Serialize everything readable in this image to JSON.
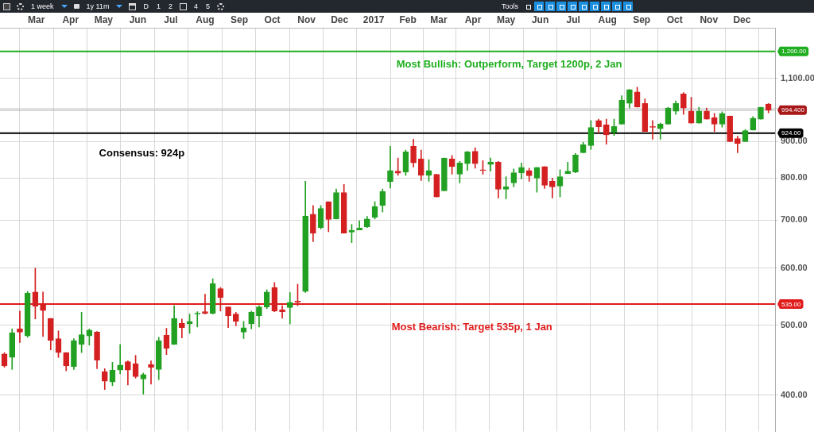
{
  "chart_data": {
    "type": "candlestick",
    "x": [
      "2016-02-01",
      "2016-02-08",
      "2016-02-15",
      "2016-02-22",
      "2016-02-29",
      "2016-03-07",
      "2016-03-14",
      "2016-03-21",
      "2016-03-28",
      "2016-04-04",
      "2016-04-11",
      "2016-04-18",
      "2016-04-25",
      "2016-05-02",
      "2016-05-09",
      "2016-05-16",
      "2016-05-23",
      "2016-05-30",
      "2016-06-06",
      "2016-06-13",
      "2016-06-20",
      "2016-06-27",
      "2016-07-04",
      "2016-07-11",
      "2016-07-18",
      "2016-07-25",
      "2016-08-01",
      "2016-08-08",
      "2016-08-15",
      "2016-08-22",
      "2016-08-29",
      "2016-09-05",
      "2016-09-12",
      "2016-09-19",
      "2016-09-26",
      "2016-10-03",
      "2016-10-10",
      "2016-10-17",
      "2016-10-24",
      "2016-10-31",
      "2016-11-07",
      "2016-11-14",
      "2016-11-21",
      "2016-11-28",
      "2016-12-05",
      "2016-12-12",
      "2016-12-19",
      "2016-12-26",
      "2017-01-02",
      "2017-01-09",
      "2017-01-16",
      "2017-01-23",
      "2017-01-30",
      "2017-02-06",
      "2017-02-13",
      "2017-02-20",
      "2017-02-27",
      "2017-03-06",
      "2017-03-13",
      "2017-03-20",
      "2017-03-27",
      "2017-04-03",
      "2017-04-10",
      "2017-04-17",
      "2017-04-24",
      "2017-05-01",
      "2017-05-08",
      "2017-05-15",
      "2017-05-22",
      "2017-05-29",
      "2017-06-05",
      "2017-06-12",
      "2017-06-19",
      "2017-06-26",
      "2017-07-03",
      "2017-07-10",
      "2017-07-17",
      "2017-07-24",
      "2017-07-31",
      "2017-08-07",
      "2017-08-14",
      "2017-08-21",
      "2017-08-28",
      "2017-09-04",
      "2017-09-11",
      "2017-09-18",
      "2017-09-25",
      "2017-10-02",
      "2017-10-09",
      "2017-10-16",
      "2017-10-23",
      "2017-10-30",
      "2017-11-06",
      "2017-11-13",
      "2017-11-20",
      "2017-11-27",
      "2017-12-04",
      "2017-12-11",
      "2017-12-18",
      "2017-12-25"
    ],
    "ohlc": [
      [
        456,
        458,
        437,
        439
      ],
      [
        451,
        494,
        434,
        488
      ],
      [
        494,
        523,
        473,
        489
      ],
      [
        483,
        557,
        481,
        554
      ],
      [
        556,
        600,
        510,
        531
      ],
      [
        534,
        556,
        482,
        524
      ],
      [
        511,
        511,
        462,
        476
      ],
      [
        479,
        491,
        451,
        458
      ],
      [
        458,
        458,
        432,
        439
      ],
      [
        438,
        479,
        434,
        476
      ],
      [
        470,
        521,
        458,
        485
      ],
      [
        483,
        494,
        469,
        492
      ],
      [
        489,
        490,
        435,
        447
      ],
      [
        431,
        435,
        407,
        418
      ],
      [
        417,
        444,
        412,
        433
      ],
      [
        433,
        470,
        428,
        440
      ],
      [
        445,
        446,
        413,
        433
      ],
      [
        442,
        454,
        422,
        424
      ],
      [
        421,
        429,
        401,
        427
      ],
      [
        441,
        446,
        414,
        437
      ],
      [
        434,
        481,
        420,
        476
      ],
      [
        484,
        495,
        455,
        464
      ],
      [
        470,
        532,
        470,
        511
      ],
      [
        503,
        510,
        480,
        496
      ],
      [
        502,
        518,
        487,
        506
      ],
      [
        518,
        522,
        497,
        519
      ],
      [
        522,
        552,
        518,
        519
      ],
      [
        519,
        580,
        518,
        571
      ],
      [
        562,
        564,
        523,
        546
      ],
      [
        530,
        530,
        496,
        515
      ],
      [
        518,
        521,
        499,
        506
      ],
      [
        489,
        506,
        479,
        496
      ],
      [
        502,
        523,
        494,
        521
      ],
      [
        515,
        532,
        497,
        530
      ],
      [
        530,
        560,
        527,
        556
      ],
      [
        564,
        573,
        522,
        523
      ],
      [
        525,
        532,
        511,
        522
      ],
      [
        529,
        555,
        502,
        538
      ],
      [
        540,
        570,
        532,
        538
      ],
      [
        557,
        792,
        555,
        709
      ],
      [
        713,
        733,
        653,
        671
      ],
      [
        683,
        733,
        680,
        726
      ],
      [
        742,
        742,
        674,
        701
      ],
      [
        702,
        773,
        702,
        764
      ],
      [
        764,
        784,
        671,
        671
      ],
      [
        673,
        690,
        651,
        677
      ],
      [
        678,
        698,
        678,
        682
      ],
      [
        685,
        708,
        683,
        702
      ],
      [
        706,
        742,
        702,
        731
      ],
      [
        733,
        773,
        718,
        767
      ],
      [
        791,
        886,
        775,
        820
      ],
      [
        818,
        853,
        807,
        813
      ],
      [
        816,
        875,
        807,
        870
      ],
      [
        886,
        906,
        829,
        840
      ],
      [
        851,
        875,
        794,
        807
      ],
      [
        807,
        849,
        792,
        820
      ],
      [
        810,
        810,
        753,
        753
      ],
      [
        768,
        853,
        768,
        853
      ],
      [
        851,
        860,
        810,
        830
      ],
      [
        810,
        844,
        788,
        840
      ],
      [
        838,
        872,
        820,
        870
      ],
      [
        872,
        882,
        826,
        838
      ],
      [
        822,
        846,
        810,
        820
      ],
      [
        836,
        853,
        818,
        842
      ],
      [
        842,
        844,
        751,
        772
      ],
      [
        772,
        804,
        749,
        778
      ],
      [
        788,
        824,
        778,
        814
      ],
      [
        814,
        840,
        798,
        828
      ],
      [
        820,
        826,
        792,
        806
      ],
      [
        800,
        828,
        765,
        828
      ],
      [
        830,
        830,
        774,
        782
      ],
      [
        792,
        800,
        751,
        778
      ],
      [
        780,
        822,
        753,
        804
      ],
      [
        812,
        842,
        812,
        818
      ],
      [
        816,
        866,
        814,
        862
      ],
      [
        868,
        897,
        868,
        890
      ],
      [
        888,
        962,
        877,
        941
      ],
      [
        962,
        966,
        924,
        943
      ],
      [
        949,
        966,
        892,
        919
      ],
      [
        926,
        966,
        917,
        944
      ],
      [
        951,
        1041,
        951,
        1026
      ],
      [
        1016,
        1062,
        1001,
        1062
      ],
      [
        1054,
        1070,
        1004,
        1004
      ],
      [
        1016,
        1031,
        929,
        929
      ],
      [
        944,
        962,
        906,
        941
      ],
      [
        937,
        954,
        906,
        951
      ],
      [
        951,
        1004,
        951,
        1001
      ],
      [
        991,
        1024,
        981,
        1016
      ],
      [
        1047,
        1052,
        981,
        1001
      ],
      [
        991,
        1036,
        954,
        954
      ],
      [
        954,
        1004,
        954,
        991
      ],
      [
        991,
        1001,
        966,
        966
      ],
      [
        971,
        984,
        929,
        951
      ],
      [
        951,
        989,
        942,
        984
      ],
      [
        976,
        976,
        899,
        899
      ],
      [
        908,
        915,
        868,
        894
      ],
      [
        899,
        935,
        899,
        931
      ],
      [
        933,
        974,
        933,
        969
      ],
      [
        966,
        1004,
        966,
        1004
      ],
      [
        1014,
        1016,
        986,
        994.4
      ]
    ],
    "colors": [
      "#d42020",
      "#22a022",
      "#d42020",
      "#22a022",
      "#d42020",
      "#d42020",
      "#d42020",
      "#d42020",
      "#d42020",
      "#22a022",
      "#22a022",
      "#22a022",
      "#d42020",
      "#d42020",
      "#22a022",
      "#22a022",
      "#d42020",
      "#d42020",
      "#22a022",
      "#d42020",
      "#22a022",
      "#d42020",
      "#22a022",
      "#d42020",
      "#22a022",
      "#22a022",
      "#d42020",
      "#22a022",
      "#d42020",
      "#d42020",
      "#d42020",
      "#22a022",
      "#22a022",
      "#22a022",
      "#22a022",
      "#d42020",
      "#d42020",
      "#22a022",
      "#d42020",
      "#22a022",
      "#d42020",
      "#22a022",
      "#d42020",
      "#22a022",
      "#d42020",
      "#22a022",
      "#22a022",
      "#22a022",
      "#22a022",
      "#22a022",
      "#22a022",
      "#d42020",
      "#22a022",
      "#d42020",
      "#d42020",
      "#22a022",
      "#d42020",
      "#22a022",
      "#d42020",
      "#22a022",
      "#22a022",
      "#d42020",
      "#d42020",
      "#22a022",
      "#d42020",
      "#22a022",
      "#22a022",
      "#22a022",
      "#d42020",
      "#22a022",
      "#d42020",
      "#d42020",
      "#22a022",
      "#22a022",
      "#22a022",
      "#22a022",
      "#22a022",
      "#d42020",
      "#d42020",
      "#22a022",
      "#22a022",
      "#22a022",
      "#d42020",
      "#d42020",
      "#d42020",
      "#22a022",
      "#22a022",
      "#22a022",
      "#d42020",
      "#d42020",
      "#22a022",
      "#d42020",
      "#d42020",
      "#22a022",
      "#d42020",
      "#d42020",
      "#22a022",
      "#22a022",
      "#22a022",
      "#d42020"
    ],
    "xlim": [
      "2016-01-28",
      "2017-12-31"
    ],
    "xticks": [
      {
        "value": "2016-03-01",
        "label": "Mar"
      },
      {
        "value": "2016-04-01",
        "label": "Apr"
      },
      {
        "value": "2016-05-01",
        "label": "May"
      },
      {
        "value": "2016-06-01",
        "label": "Jun"
      },
      {
        "value": "2016-07-01",
        "label": "Jul"
      },
      {
        "value": "2016-08-01",
        "label": "Aug"
      },
      {
        "value": "2016-09-01",
        "label": "Sep"
      },
      {
        "value": "2016-10-01",
        "label": "Oct"
      },
      {
        "value": "2016-11-01",
        "label": "Nov"
      },
      {
        "value": "2016-12-01",
        "label": "Dec"
      },
      {
        "value": "2017-01-01",
        "label": "2017"
      },
      {
        "value": "2017-02-01",
        "label": "Feb"
      },
      {
        "value": "2017-03-01",
        "label": "Mar"
      },
      {
        "value": "2017-04-01",
        "label": "Apr"
      },
      {
        "value": "2017-05-01",
        "label": "May"
      },
      {
        "value": "2017-06-01",
        "label": "Jun"
      },
      {
        "value": "2017-07-01",
        "label": "Jul"
      },
      {
        "value": "2017-08-01",
        "label": "Aug"
      },
      {
        "value": "2017-09-01",
        "label": "Sep"
      },
      {
        "value": "2017-10-01",
        "label": "Oct"
      },
      {
        "value": "2017-11-01",
        "label": "Nov"
      },
      {
        "value": "2017-12-01",
        "label": "Dec"
      }
    ],
    "ylim": [
      356,
      1294
    ],
    "yticks": [
      {
        "value": 400,
        "label": "400.00"
      },
      {
        "value": 500,
        "label": "500.00"
      },
      {
        "value": 600,
        "label": "600.00"
      },
      {
        "value": 700,
        "label": "700.00"
      },
      {
        "value": 800,
        "label": "800.00"
      },
      {
        "value": 900,
        "label": "900.00"
      },
      {
        "value": 1000,
        "label": null
      },
      {
        "value": 1100,
        "label": "1,100.00"
      }
    ],
    "log": "y",
    "grid": true,
    "ref_lines": [
      {
        "axis": "y",
        "value": 1200,
        "label": "1,200.00",
        "color": "#1fae1f"
      },
      {
        "axis": "y",
        "value": 994.4,
        "label": "994.400",
        "color": "#a0a0a0"
      },
      {
        "axis": "y",
        "value": 924,
        "label": "924.00",
        "color": "#000000"
      },
      {
        "axis": "y",
        "value": 535,
        "label": "535.00",
        "color": "#e01c1c"
      }
    ],
    "annotations": [
      "Most Bullish: Outperform, Target 1200p, 2 Jan",
      "Consensus: 924p",
      "Most Bearish: Target 535p, 1 Jan",
      "1 week",
      "1y 11m",
      "D",
      "1",
      "2",
      "4",
      "5",
      "Tools"
    ]
  }
}
